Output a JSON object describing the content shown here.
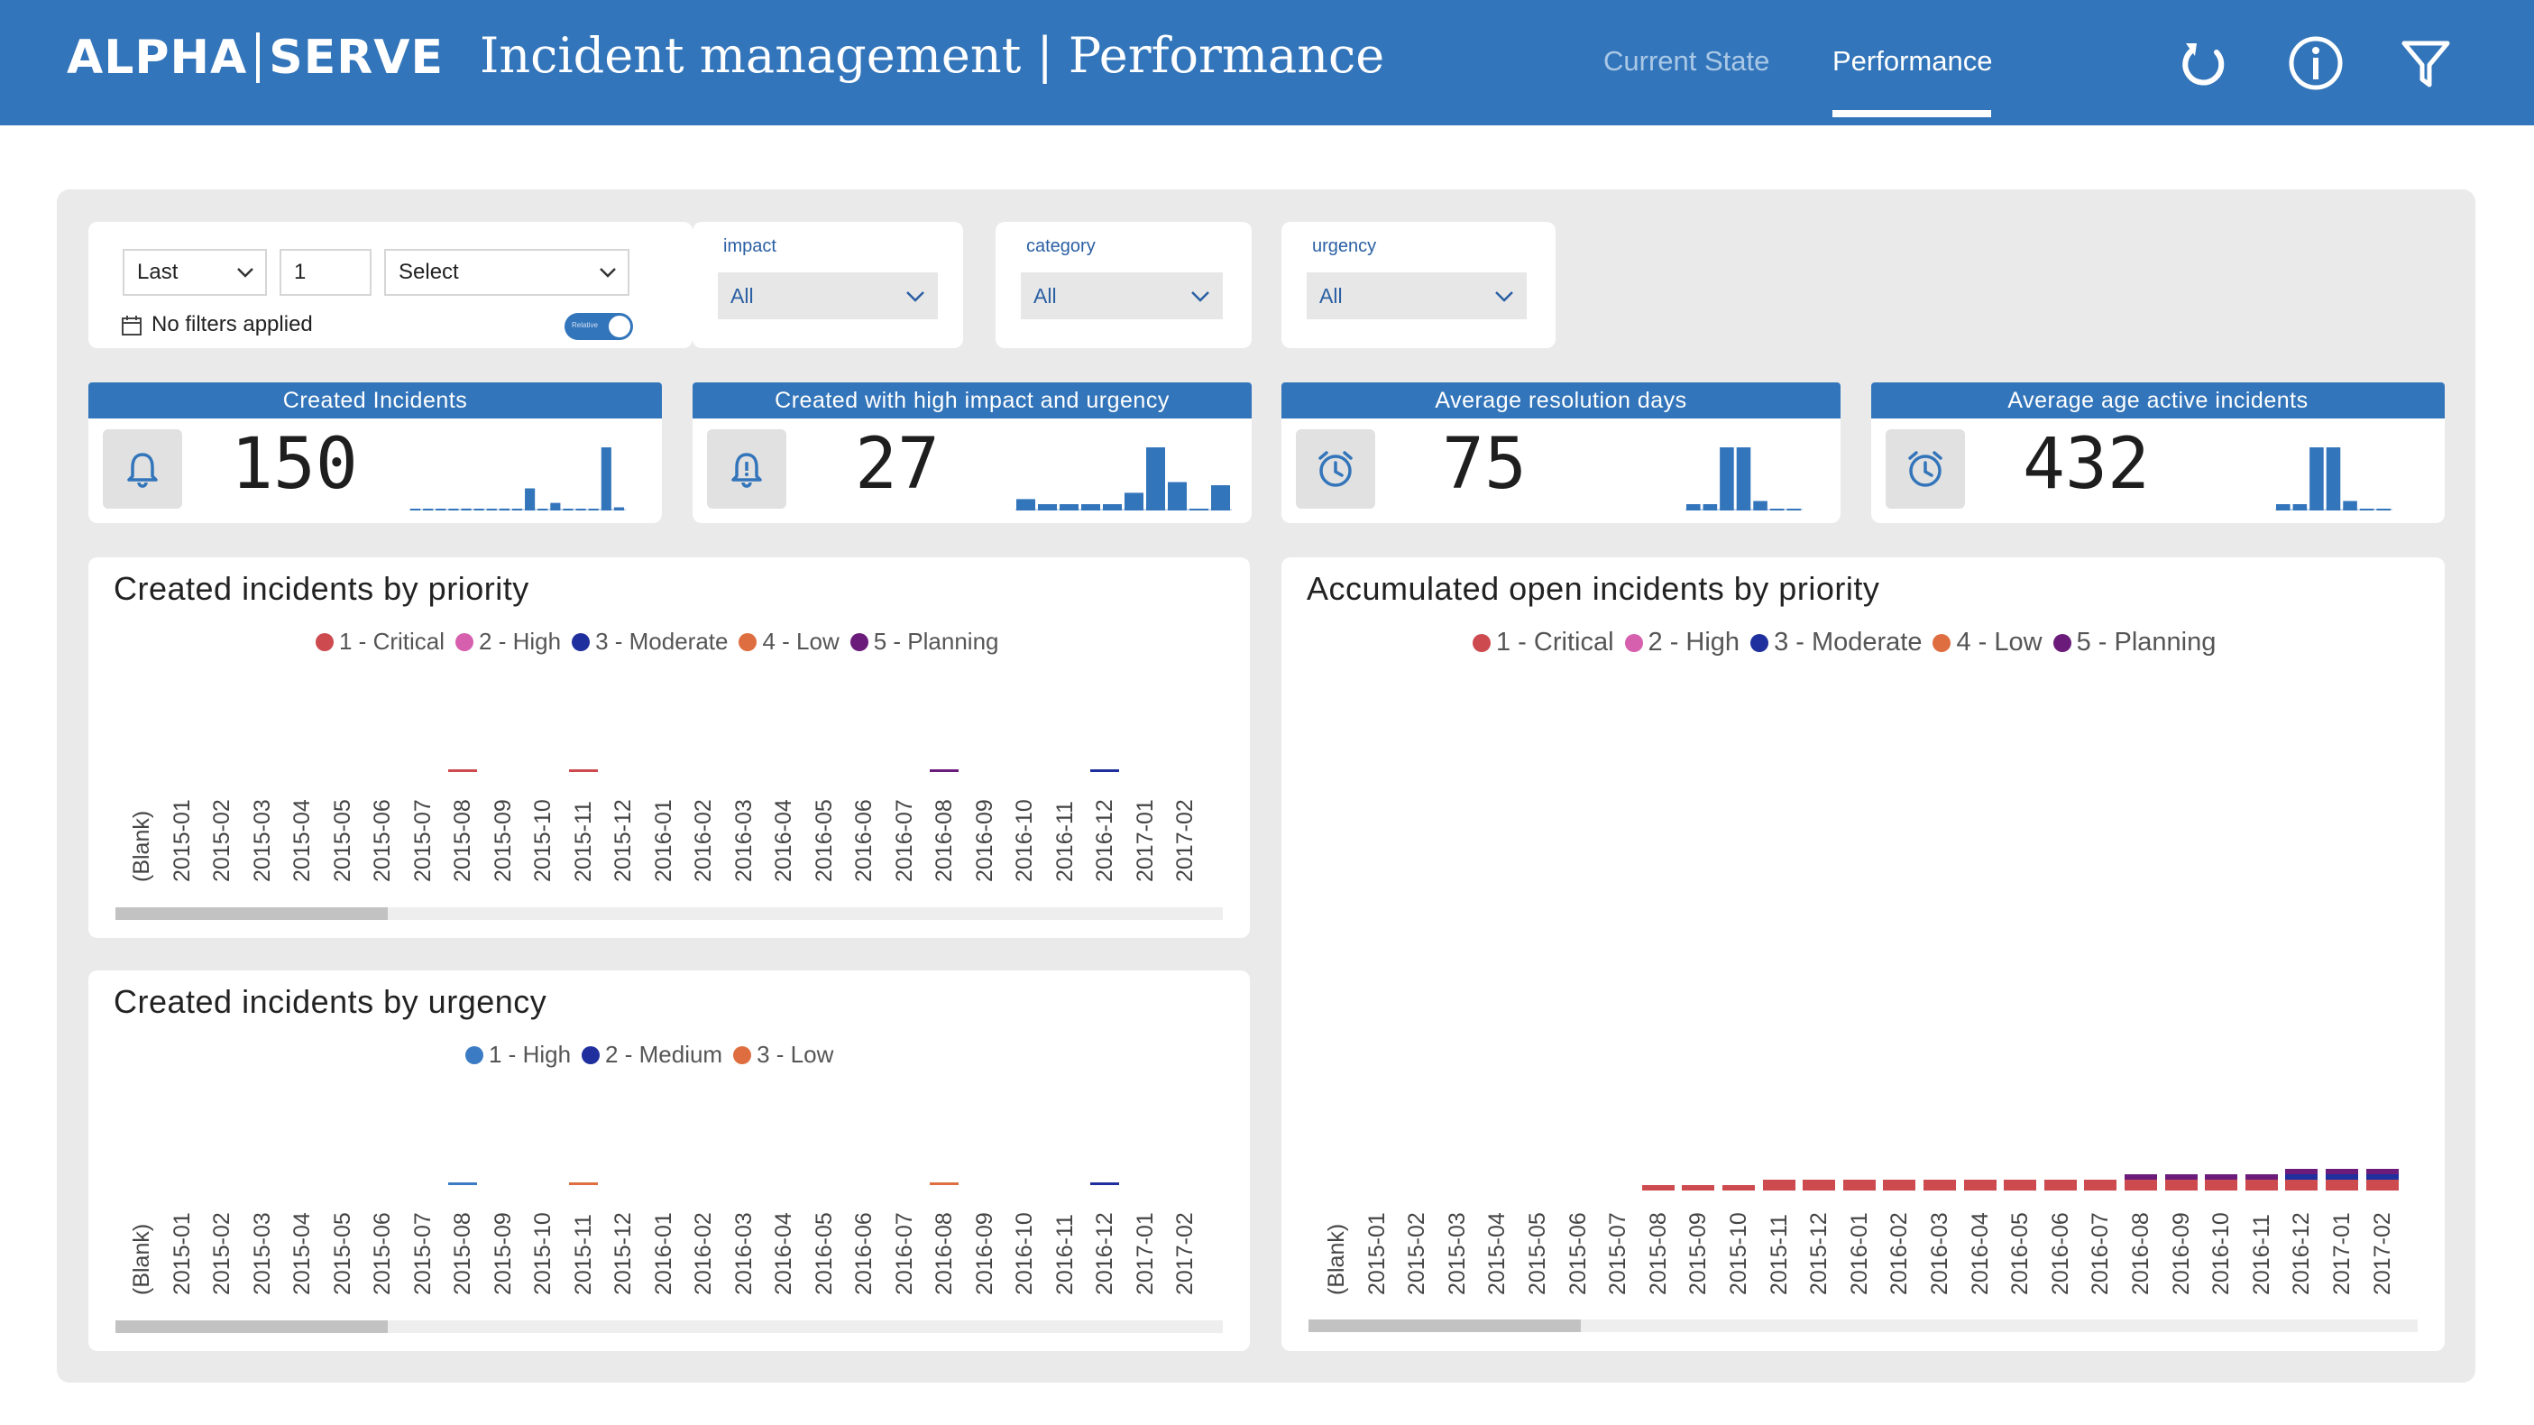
{
  "header": {
    "logo_left": "ALPHA",
    "logo_right": "SERVE",
    "title": "Incident management | Performance",
    "tabs": [
      {
        "label": "Current State",
        "active": false
      },
      {
        "label": "Performance",
        "active": true
      }
    ],
    "icons": [
      "refresh-icon",
      "info-icon",
      "filter-icon"
    ],
    "colors": {
      "bar": "#3375ba",
      "inactive_tab": "#a9c8e6"
    }
  },
  "relative_date_filter": {
    "mode_value": "Last",
    "count_value": "1",
    "period_placeholder": "Select",
    "status_text": "No filters applied",
    "toggle_label": "Relative"
  },
  "slicers": [
    {
      "label": "impact",
      "value": "All"
    },
    {
      "label": "category",
      "value": "All"
    },
    {
      "label": "urgency",
      "value": "All"
    }
  ],
  "kpis": [
    {
      "title": "Created Incidents",
      "value": "150",
      "icon": "bell-icon",
      "spark": [
        0.02,
        0.02,
        0.02,
        0.02,
        0.03,
        0.02,
        0.02,
        0.03,
        0.02,
        0.35,
        0.02,
        0.12,
        0.02,
        0.02,
        0.02,
        1.0,
        0.05
      ]
    },
    {
      "title": "Created with high impact and urgency",
      "value": "27",
      "icon": "bell-alert-icon",
      "spark": [
        0.18,
        0.1,
        0.1,
        0.1,
        0.1,
        0.28,
        1.0,
        0.45,
        0.02,
        0.4
      ]
    },
    {
      "title": "Average resolution days",
      "value": "75",
      "icon": "alarm-clock-icon",
      "spark": [
        0.1,
        0.1,
        1.0,
        1.0,
        0.15,
        0.02,
        0.02
      ]
    },
    {
      "title": "Average age active incidents",
      "value": "432",
      "icon": "alarm-clock-icon",
      "spark": [
        0.1,
        0.1,
        1.0,
        1.0,
        0.15,
        0.02,
        0.02
      ]
    }
  ],
  "priority_legend": [
    {
      "label": "1 - Critical",
      "color": "#cd4a4f"
    },
    {
      "label": "2 - High",
      "color": "#d65fae"
    },
    {
      "label": "3 - Moderate",
      "color": "#1f2f9e"
    },
    {
      "label": "4 - Low",
      "color": "#de6e3f"
    },
    {
      "label": "5 - Planning",
      "color": "#6b1c7a"
    }
  ],
  "urgency_legend": [
    {
      "label": "1 - High",
      "color": "#3b7bc4"
    },
    {
      "label": "2 - Medium",
      "color": "#1f2f9e"
    },
    {
      "label": "3 - Low",
      "color": "#de6e3f"
    }
  ],
  "categories": [
    "(Blank)",
    "2015-01",
    "2015-02",
    "2015-03",
    "2015-04",
    "2015-05",
    "2015-06",
    "2015-07",
    "2015-08",
    "2015-09",
    "2015-10",
    "2015-11",
    "2015-12",
    "2016-01",
    "2016-02",
    "2016-03",
    "2016-04",
    "2016-05",
    "2016-06",
    "2016-07",
    "2016-08",
    "2016-09",
    "2016-10",
    "2016-11",
    "2016-12",
    "2017-01",
    "2017-02"
  ],
  "charts": {
    "priority_title": "Created incidents by priority",
    "urgency_title": "Created incidents by urgency",
    "accumulated_title": "Accumulated open incidents by priority"
  },
  "chart_data": [
    {
      "type": "bar",
      "title": "Created incidents by priority",
      "stacked": true,
      "categories": [
        "(Blank)",
        "2015-01",
        "2015-02",
        "2015-03",
        "2015-04",
        "2015-05",
        "2015-06",
        "2015-07",
        "2015-08",
        "2015-09",
        "2015-10",
        "2015-11",
        "2015-12",
        "2016-01",
        "2016-02",
        "2016-03",
        "2016-04",
        "2016-05",
        "2016-06",
        "2016-07",
        "2016-08",
        "2016-09",
        "2016-10",
        "2016-11",
        "2016-12",
        "2017-01",
        "2017-02"
      ],
      "series": [
        {
          "name": "1 - Critical",
          "values": [
            0,
            0,
            0,
            0,
            0,
            0,
            0,
            0,
            1,
            0,
            0,
            1,
            0,
            0,
            0,
            0,
            0,
            0,
            0,
            0,
            0,
            0,
            0,
            0,
            0,
            0,
            0
          ]
        },
        {
          "name": "2 - High",
          "values": [
            0,
            0,
            0,
            0,
            0,
            0,
            0,
            0,
            0,
            0,
            0,
            0,
            0,
            0,
            0,
            0,
            0,
            0,
            0,
            0,
            0,
            0,
            0,
            0,
            0,
            0,
            0
          ]
        },
        {
          "name": "3 - Moderate",
          "values": [
            0,
            0,
            0,
            0,
            0,
            0,
            0,
            0,
            0,
            0,
            0,
            0,
            0,
            0,
            0,
            0,
            0,
            0,
            0,
            0,
            0,
            0,
            0,
            0,
            1,
            0,
            0
          ]
        },
        {
          "name": "4 - Low",
          "values": [
            0,
            0,
            0,
            0,
            0,
            0,
            0,
            0,
            0,
            0,
            0,
            0,
            0,
            0,
            0,
            0,
            0,
            0,
            0,
            0,
            0,
            0,
            0,
            0,
            0,
            0,
            0
          ]
        },
        {
          "name": "5 - Planning",
          "values": [
            0,
            0,
            0,
            0,
            0,
            0,
            0,
            0,
            0,
            0,
            0,
            0,
            0,
            0,
            0,
            0,
            0,
            0,
            0,
            0,
            1,
            0,
            0,
            0,
            0,
            0,
            0
          ]
        }
      ],
      "legend": "top-center",
      "grid": false
    },
    {
      "type": "bar",
      "title": "Created incidents by urgency",
      "stacked": true,
      "categories": [
        "(Blank)",
        "2015-01",
        "2015-02",
        "2015-03",
        "2015-04",
        "2015-05",
        "2015-06",
        "2015-07",
        "2015-08",
        "2015-09",
        "2015-10",
        "2015-11",
        "2015-12",
        "2016-01",
        "2016-02",
        "2016-03",
        "2016-04",
        "2016-05",
        "2016-06",
        "2016-07",
        "2016-08",
        "2016-09",
        "2016-10",
        "2016-11",
        "2016-12",
        "2017-01",
        "2017-02"
      ],
      "series": [
        {
          "name": "1 - High",
          "values": [
            0,
            0,
            0,
            0,
            0,
            0,
            0,
            0,
            1,
            0,
            0,
            0,
            0,
            0,
            0,
            0,
            0,
            0,
            0,
            0,
            0,
            0,
            0,
            0,
            0,
            0,
            0
          ]
        },
        {
          "name": "2 - Medium",
          "values": [
            0,
            0,
            0,
            0,
            0,
            0,
            0,
            0,
            0,
            0,
            0,
            0,
            0,
            0,
            0,
            0,
            0,
            0,
            0,
            0,
            0,
            0,
            0,
            0,
            1,
            0,
            0
          ]
        },
        {
          "name": "3 - Low",
          "values": [
            0,
            0,
            0,
            0,
            0,
            0,
            0,
            0,
            0,
            0,
            0,
            1,
            0,
            0,
            0,
            0,
            0,
            0,
            0,
            0,
            1,
            0,
            0,
            0,
            0,
            0,
            0
          ]
        }
      ],
      "legend": "top-center",
      "grid": false
    },
    {
      "type": "bar",
      "title": "Accumulated open incidents by priority",
      "stacked": true,
      "categories": [
        "(Blank)",
        "2015-01",
        "2015-02",
        "2015-03",
        "2015-04",
        "2015-05",
        "2015-06",
        "2015-07",
        "2015-08",
        "2015-09",
        "2015-10",
        "2015-11",
        "2015-12",
        "2016-01",
        "2016-02",
        "2016-03",
        "2016-04",
        "2016-05",
        "2016-06",
        "2016-07",
        "2016-08",
        "2016-09",
        "2016-10",
        "2016-11",
        "2016-12",
        "2017-01",
        "2017-02"
      ],
      "series": [
        {
          "name": "1 - Critical",
          "values": [
            0,
            0,
            0,
            0,
            0,
            0,
            0,
            0,
            1,
            1,
            1,
            2,
            2,
            2,
            2,
            2,
            2,
            2,
            2,
            2,
            2,
            2,
            2,
            2,
            2,
            2,
            2
          ]
        },
        {
          "name": "2 - High",
          "values": [
            0,
            0,
            0,
            0,
            0,
            0,
            0,
            0,
            0,
            0,
            0,
            0,
            0,
            0,
            0,
            0,
            0,
            0,
            0,
            0,
            0,
            0,
            0,
            0,
            0,
            0,
            0
          ]
        },
        {
          "name": "3 - Moderate",
          "values": [
            0,
            0,
            0,
            0,
            0,
            0,
            0,
            0,
            0,
            0,
            0,
            0,
            0,
            0,
            0,
            0,
            0,
            0,
            0,
            0,
            0,
            0,
            0,
            0,
            1,
            1,
            1
          ]
        },
        {
          "name": "4 - Low",
          "values": [
            0,
            0,
            0,
            0,
            0,
            0,
            0,
            0,
            0,
            0,
            0,
            0,
            0,
            0,
            0,
            0,
            0,
            0,
            0,
            0,
            0,
            0,
            0,
            0,
            0,
            0,
            0
          ]
        },
        {
          "name": "5 - Planning",
          "values": [
            0,
            0,
            0,
            0,
            0,
            0,
            0,
            0,
            0,
            0,
            0,
            0,
            0,
            0,
            0,
            0,
            0,
            0,
            0,
            0,
            1,
            1,
            1,
            1,
            1,
            1,
            1
          ]
        }
      ],
      "legend": "top-center",
      "grid": false
    }
  ]
}
